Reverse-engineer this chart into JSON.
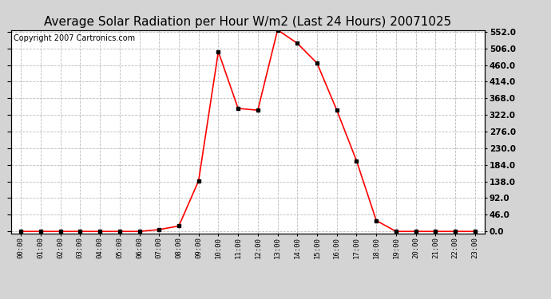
{
  "title": "Average Solar Radiation per Hour W/m2 (Last 24 Hours) 20071025",
  "copyright": "Copyright 2007 Cartronics.com",
  "hours": [
    0,
    1,
    2,
    3,
    4,
    5,
    6,
    7,
    8,
    9,
    10,
    11,
    12,
    13,
    14,
    15,
    16,
    17,
    18,
    19,
    20,
    21,
    22,
    23
  ],
  "values": [
    0,
    0,
    0,
    0,
    0,
    0,
    0,
    5,
    15,
    140,
    497,
    340,
    335,
    557,
    520,
    465,
    335,
    195,
    30,
    0,
    0,
    0,
    0,
    0
  ],
  "x_labels": [
    "00:00",
    "01:00",
    "02:00",
    "03:00",
    "04:00",
    "05:00",
    "06:00",
    "07:00",
    "08:00",
    "09:00",
    "10:00",
    "11:00",
    "12:00",
    "13:00",
    "14:00",
    "15:00",
    "16:00",
    "17:00",
    "18:00",
    "19:00",
    "20:00",
    "21:00",
    "22:00",
    "23:00"
  ],
  "y_ticks": [
    0.0,
    46.0,
    92.0,
    138.0,
    184.0,
    230.0,
    276.0,
    322.0,
    368.0,
    414.0,
    460.0,
    506.0,
    552.0
  ],
  "y_min": 0.0,
  "y_max": 552.0,
  "line_color": "red",
  "marker": "s",
  "marker_color": "black",
  "marker_size": 2.5,
  "bg_color": "#d4d4d4",
  "plot_bg_color": "#ffffff",
  "grid_color": "#bbbbbb",
  "title_fontsize": 11,
  "copyright_fontsize": 7
}
